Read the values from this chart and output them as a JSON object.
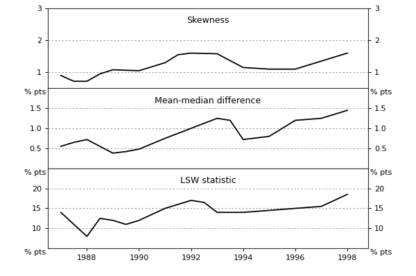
{
  "skewness_x": [
    1987,
    1987.5,
    1988,
    1988.5,
    1989,
    1990,
    1991,
    1991.5,
    1992,
    1993,
    1994,
    1995,
    1996,
    1998
  ],
  "skewness_y": [
    0.9,
    0.72,
    0.72,
    0.95,
    1.08,
    1.05,
    1.3,
    1.55,
    1.6,
    1.58,
    1.15,
    1.1,
    1.1,
    1.6
  ],
  "mean_median_x": [
    1987,
    1987.5,
    1988,
    1989,
    1989.5,
    1990,
    1991,
    1992,
    1993,
    1993.5,
    1994,
    1995,
    1996,
    1997,
    1998
  ],
  "mean_median_y": [
    0.55,
    0.65,
    0.72,
    0.38,
    0.42,
    0.48,
    0.75,
    1.0,
    1.25,
    1.2,
    0.72,
    0.8,
    1.2,
    1.25,
    1.45
  ],
  "lsw_x": [
    1987,
    1988,
    1988.5,
    1989,
    1989.5,
    1990,
    1991,
    1992,
    1992.5,
    1993,
    1994,
    1995,
    1996,
    1997,
    1998
  ],
  "lsw_y": [
    14,
    8,
    12.5,
    12,
    11,
    12,
    15,
    17,
    16.5,
    14,
    14,
    14.5,
    15,
    15.5,
    18.5
  ],
  "skewness_ylim": [
    0.5,
    3.0
  ],
  "skewness_yticks": [
    1.0,
    2.0,
    3.0
  ],
  "mean_median_ylim": [
    0.0,
    2.0
  ],
  "mean_median_yticks": [
    0.5,
    1.0,
    1.5
  ],
  "lsw_ylim": [
    5,
    25
  ],
  "lsw_yticks": [
    10,
    15,
    20
  ],
  "xlim": [
    1986.5,
    1998.8
  ],
  "xticks": [
    1988,
    1990,
    1992,
    1994,
    1996,
    1998
  ],
  "label_color": "#1a237e",
  "line_color": "#000000",
  "grid_color": "#888888",
  "spine_color": "#333333",
  "bg_color": "#ffffff",
  "panel_titles": [
    "Skewness",
    "Mean-median difference",
    "LSW statistic"
  ],
  "title_fontsize": 9,
  "tick_fontsize": 8,
  "pts_fontsize": 8
}
